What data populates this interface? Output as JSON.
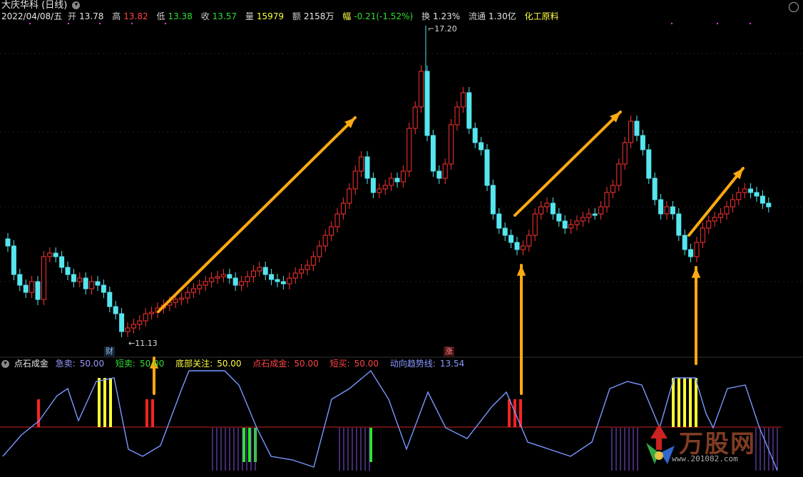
{
  "header": {
    "title": "大庆华科 (日线)",
    "date": "2022/04/08/五",
    "open_label": "开",
    "open_value": "13.78",
    "high_label": "高",
    "high_value": "13.82",
    "low_label": "低",
    "low_value": "13.38",
    "close_label": "收",
    "close_value": "13.57",
    "vol_label": "量",
    "vol_value": "15979",
    "amount_label": "额",
    "amount_value": "2158万",
    "change_label": "幅",
    "change_value": "-0.21(-1.52%)",
    "turnover_label": "换",
    "turnover_value": "1.23%",
    "float_label": "流通",
    "float_value": "1.30亿",
    "sector": "化工原料"
  },
  "price_chart": {
    "high_label": "17.20",
    "low_label": "11.13",
    "tag_cai": "财",
    "tag_zhang": "涨"
  },
  "indicator": {
    "name": "点石成金",
    "items": [
      {
        "label": "急卖:",
        "value": "50.00",
        "color": "#9999ff"
      },
      {
        "label": "短卖:",
        "value": "50.00",
        "color": "#33dd33"
      },
      {
        "label": "底部关注:",
        "value": "50.00",
        "color": "#ffff44"
      },
      {
        "label": "点石成金:",
        "value": "50.00",
        "color": "#ff4444"
      },
      {
        "label": "短买:",
        "value": "50.00",
        "color": "#ff4444"
      },
      {
        "label": "动向趋势线:",
        "value": "13.54",
        "color": "#8899ff"
      }
    ]
  },
  "watermark": {
    "brand": "万股网",
    "url": "www.201082.com"
  },
  "colors": {
    "up": "#ff3333",
    "down": "#55e6ee",
    "arrow": "#ffaa11",
    "trend": "#7799ff"
  }
}
